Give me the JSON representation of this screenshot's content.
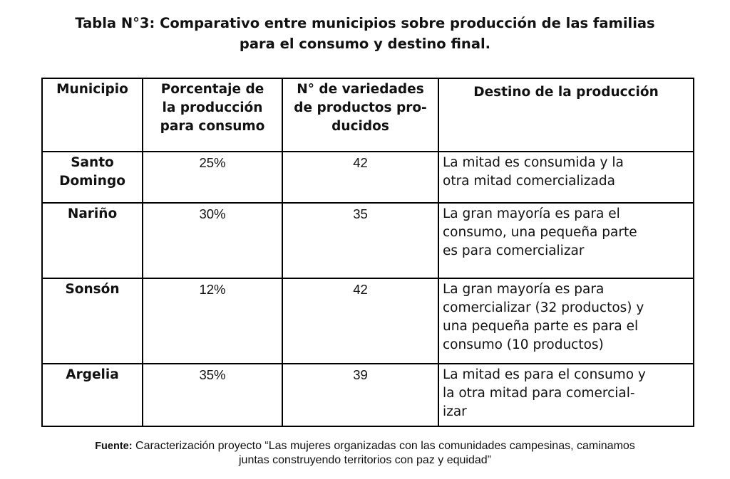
{
  "title": {
    "line1": "Tabla N°3: Comparativo entre municipios sobre producción de las familias",
    "line2": "para el consumo y destino final."
  },
  "table": {
    "headers": [
      [
        "Municipio"
      ],
      [
        "Porcentaje de",
        "la producción",
        "para consumo"
      ],
      [
        "N° de variedades",
        "de productos pro-",
        "ducidos"
      ],
      [
        "Destino de la producción"
      ]
    ],
    "rows": [
      {
        "municipio": [
          "Santo",
          "Domingo"
        ],
        "porcentaje": "25%",
        "variedades": "42",
        "destino": [
          "La mitad es consumida y la",
          "otra mitad comercializada"
        ]
      },
      {
        "municipio": [
          "Nariño"
        ],
        "porcentaje": "30%",
        "variedades": "35",
        "destino": [
          "La gran mayoría es para el",
          "consumo, una pequeña parte",
          "es para comercializar"
        ]
      },
      {
        "municipio": [
          "Sonsón"
        ],
        "porcentaje": "12%",
        "variedades": "42",
        "destino": [
          "La gran mayoría es para",
          "comercializar (32 productos) y",
          "una pequeña parte es para el",
          "consumo (10 productos)"
        ]
      },
      {
        "municipio": [
          "Argelia"
        ],
        "porcentaje": "35%",
        "variedades": "39",
        "destino": [
          "La mitad es para el consumo y",
          "la otra mitad para comercial-",
          "izar"
        ]
      }
    ]
  },
  "source": {
    "label": "Fuente:",
    "line1": "Caracterización proyecto “Las mujeres organizadas con las comunidades campesinas, caminamos",
    "line2": "juntas construyendo territorios con paz y equidad”"
  }
}
